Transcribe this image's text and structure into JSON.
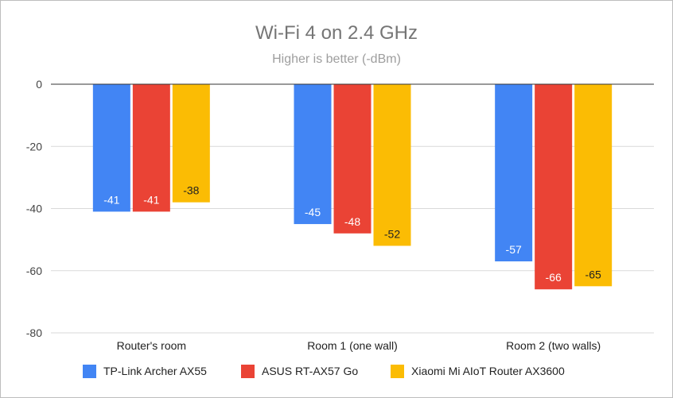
{
  "chart_data": {
    "type": "bar",
    "title": "Wi-Fi 4 on 2.4 GHz",
    "subtitle": "Higher is better (-dBm)",
    "categories": [
      "Router's room",
      "Room 1 (one wall)",
      "Room 2 (two walls)"
    ],
    "series": [
      {
        "name": "TP-Link Archer AX55",
        "color": "#4285f4",
        "label_color": "#ffffff",
        "values": [
          -41,
          -45,
          -57
        ]
      },
      {
        "name": "ASUS RT-AX57 Go",
        "color": "#ea4335",
        "label_color": "#ffffff",
        "values": [
          -41,
          -48,
          -66
        ]
      },
      {
        "name": "Xiaomi Mi AIoT Router AX3600",
        "color": "#fbbc04",
        "label_color": "#222222",
        "values": [
          -38,
          -52,
          -65
        ]
      }
    ],
    "ylim": [
      -80,
      0
    ],
    "yticks": [
      0,
      -20,
      -40,
      -60,
      -80
    ],
    "grid": true,
    "legend_position": "bottom"
  }
}
